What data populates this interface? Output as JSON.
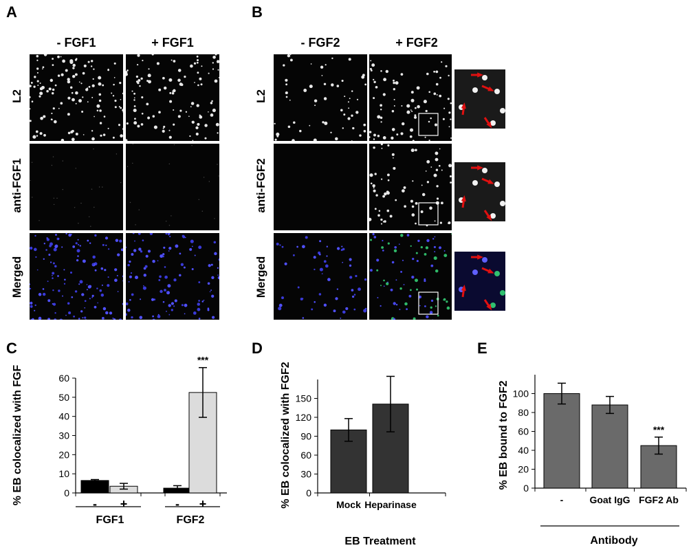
{
  "panel_labels": [
    "A",
    "B",
    "C",
    "D",
    "E"
  ],
  "panel_a": {
    "columns": [
      "- FGF1",
      "+ FGF1"
    ],
    "rows": [
      "L2",
      "anti-FGF1",
      "Merged"
    ]
  },
  "panel_b": {
    "columns": [
      "- FGF2",
      "+ FGF2"
    ],
    "rows": [
      "L2",
      "anti-FGF2",
      "Merged"
    ]
  },
  "chart_data": [
    {
      "id": "C",
      "type": "bar",
      "ylabel": "% EB colocalized with FGF",
      "ylim": [
        0,
        60
      ],
      "yticks": [
        0,
        10,
        20,
        30,
        40,
        50,
        60
      ],
      "groups": [
        "FGF1",
        "FGF2"
      ],
      "categories": [
        "-",
        "+",
        "-",
        "+"
      ],
      "values": [
        6.5,
        3.5,
        2.5,
        52.5
      ],
      "errors": [
        0.5,
        1.5,
        1.3,
        13
      ],
      "colors": [
        "#000000",
        "#dcdcdc",
        "#000000",
        "#dcdcdc"
      ],
      "annotation": "***",
      "annotation_index": 3
    },
    {
      "id": "D",
      "type": "bar",
      "ylabel": "% EB colocalized with FGF2",
      "xlabel": "EB Treatment",
      "ylim": [
        0,
        180
      ],
      "yticks": [
        0,
        30,
        60,
        90,
        120,
        150
      ],
      "categories": [
        "Mock",
        "Heparinase"
      ],
      "values": [
        100,
        141
      ],
      "errors": [
        18,
        44
      ],
      "colors": [
        "#333333",
        "#333333"
      ]
    },
    {
      "id": "E",
      "type": "bar",
      "ylabel": "% EB bound to FGF2",
      "xlabel": "Antibody",
      "ylim": [
        0,
        120
      ],
      "yticks": [
        0,
        20,
        40,
        60,
        80,
        100
      ],
      "categories": [
        "-",
        "Goat IgG",
        "FGF2 Ab"
      ],
      "values": [
        100,
        88,
        45
      ],
      "errors": [
        11,
        9,
        9
      ],
      "colors": [
        "#6a6a6a",
        "#6a6a6a",
        "#6a6a6a"
      ],
      "annotation": "***",
      "annotation_index": 2
    }
  ]
}
